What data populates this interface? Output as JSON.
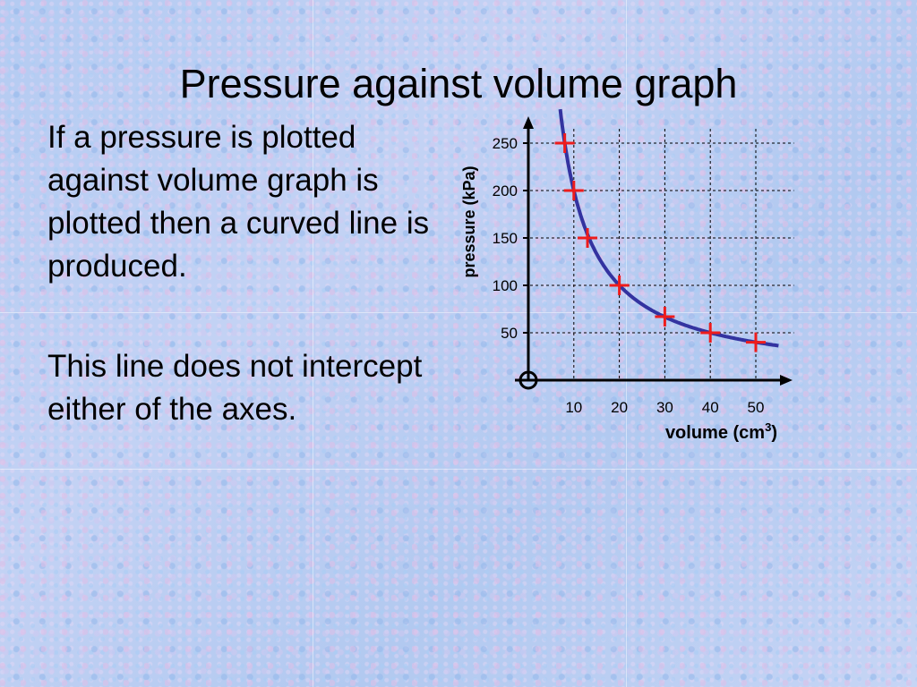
{
  "slide": {
    "title": "Pressure against volume graph",
    "paragraphs": [
      "If a pressure is plotted against volume graph is plotted then a curved line is produced.",
      "This line does not intercept either of the axes."
    ]
  },
  "chart_data": {
    "type": "scatter",
    "title": "",
    "xlabel": "volume (cm",
    "xlabel_superscript": "3",
    "xlabel_close": ")",
    "ylabel": "pressure (kPa)",
    "x_ticks": [
      "10",
      "20",
      "30",
      "40",
      "50"
    ],
    "y_ticks": [
      "50",
      "100",
      "150",
      "200",
      "250"
    ],
    "xlim": [
      0,
      58
    ],
    "ylim": [
      0,
      275
    ],
    "grid": true,
    "points": [
      {
        "x": 8,
        "y": 250
      },
      {
        "x": 10,
        "y": 200
      },
      {
        "x": 13,
        "y": 150
      },
      {
        "x": 20,
        "y": 100
      },
      {
        "x": 30,
        "y": 67
      },
      {
        "x": 40,
        "y": 50
      },
      {
        "x": 50,
        "y": 40
      }
    ],
    "curve": {
      "type": "inverse",
      "k": 2000,
      "x_range": [
        7,
        55
      ]
    },
    "colors": {
      "curve": "#3333a0",
      "points": "#ee1c1c",
      "axes": "#000000",
      "grid": "#000000"
    }
  }
}
